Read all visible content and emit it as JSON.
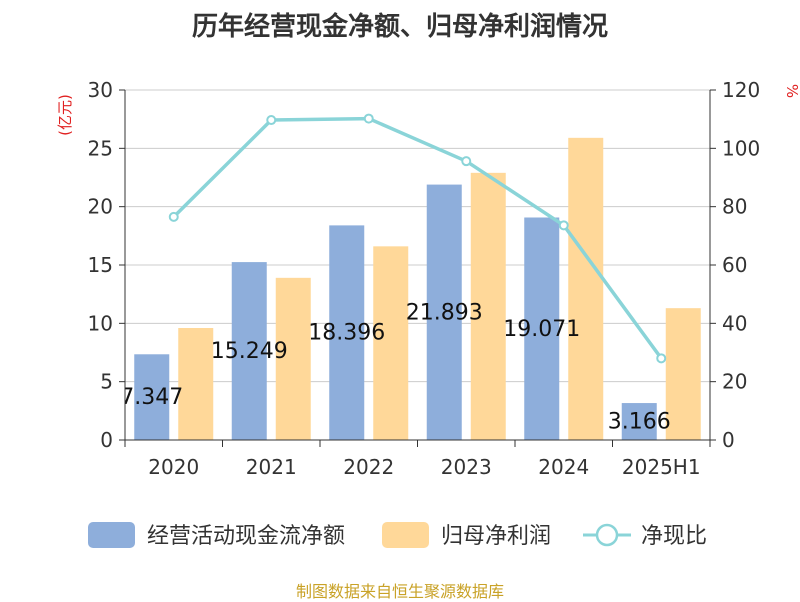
{
  "chart_data": {
    "type": "bar",
    "title": "历年经营现金净额、归母净利润情况",
    "categories": [
      "2020",
      "2021",
      "2022",
      "2023",
      "2024",
      "2025H1"
    ],
    "series": [
      {
        "name": "经营活动现金流净额",
        "type": "bar",
        "axis": "left",
        "color": "#8eaedb",
        "values": [
          7.347,
          15.249,
          18.396,
          21.893,
          19.071,
          3.166
        ],
        "labels": [
          "7.347",
          "15.249",
          "18.396",
          "21.893",
          "19.071",
          "3.166"
        ]
      },
      {
        "name": "归母净利润",
        "type": "bar",
        "axis": "left",
        "color": "#ffd899",
        "values": [
          9.6,
          13.9,
          16.6,
          22.9,
          25.9,
          11.3
        ]
      },
      {
        "name": "净现比",
        "type": "line",
        "axis": "right",
        "color": "#8ad4d8",
        "values": [
          76.5,
          109.7,
          110.2,
          95.6,
          73.6,
          28.0
        ]
      }
    ],
    "y_left": {
      "label": "(亿元)",
      "range": [
        0,
        30
      ],
      "ticks": [
        "0",
        "5",
        "10",
        "15",
        "20",
        "25",
        "30"
      ]
    },
    "y_right": {
      "label": "%",
      "range": [
        0,
        120
      ],
      "ticks": [
        "0",
        "20",
        "40",
        "60",
        "80",
        "100",
        "120"
      ]
    },
    "grid": true,
    "legend_position": "bottom"
  },
  "source_text": "制图数据来自恒生聚源数据库"
}
